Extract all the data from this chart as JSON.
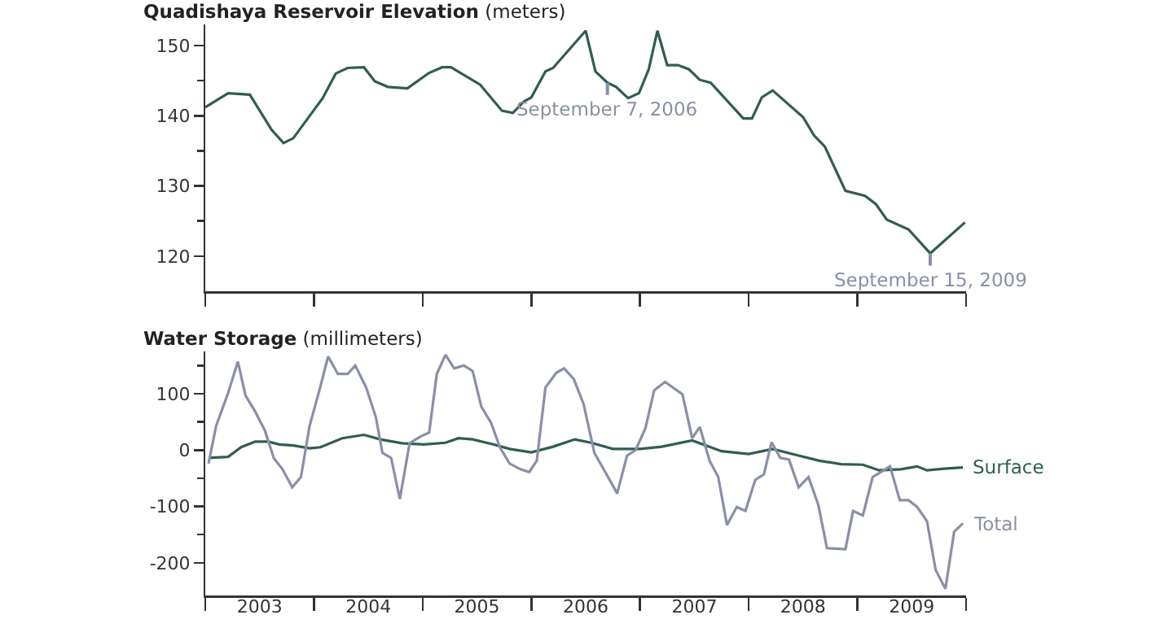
{
  "chart_data": [
    {
      "type": "line",
      "title": "Quadishaya Reservoir Elevation",
      "ylabel": "(meters)",
      "x": [
        2003.0,
        2003.21,
        2003.41,
        2003.61,
        2003.72,
        2003.81,
        2004.08,
        2004.2,
        2004.31,
        2004.46,
        2004.56,
        2004.68,
        2004.86,
        2005.06,
        2005.18,
        2005.26,
        2005.53,
        2005.73,
        2005.83,
        2005.93,
        2006.0,
        2006.13,
        2006.2,
        2006.5,
        2006.59,
        2006.7,
        2006.78,
        2006.89,
        2006.99,
        2007.08,
        2007.16,
        2007.25,
        2007.35,
        2007.45,
        2007.55,
        2007.65,
        2007.95,
        2008.03,
        2008.12,
        2008.22,
        2008.5,
        2008.6,
        2008.7,
        2008.89,
        2009.07,
        2009.17,
        2009.27,
        2009.47,
        2009.67,
        2009.99
      ],
      "series": [
        {
          "color": "#2f5e50",
          "values": [
            141.2,
            143.2,
            143.0,
            138.0,
            136.1,
            136.8,
            142.5,
            146.0,
            146.8,
            146.9,
            144.9,
            144.1,
            143.9,
            146.1,
            146.9,
            146.9,
            144.4,
            140.7,
            140.4,
            142.0,
            142.6,
            146.3,
            146.8,
            152.1,
            146.3,
            144.7,
            144.1,
            142.5,
            143.2,
            146.6,
            152.1,
            147.2,
            147.2,
            146.6,
            145.1,
            144.7,
            139.6,
            139.6,
            142.6,
            143.6,
            139.8,
            137.2,
            135.6,
            129.3,
            128.6,
            127.4,
            125.2,
            123.8,
            120.4,
            124.8
          ]
        }
      ],
      "annotations": [
        {
          "text": "September 7, 2006",
          "x": 2006.7,
          "y": 144.7
        },
        {
          "text": "September 15, 2009",
          "x": 2009.67,
          "y": 120.4
        }
      ],
      "xlim": [
        2003,
        2010
      ],
      "xticks": [
        {
          "value": 2003,
          "label": null
        },
        {
          "value": 2004,
          "label": null
        },
        {
          "value": 2005,
          "label": null
        },
        {
          "value": 2006,
          "label": null
        },
        {
          "value": 2007,
          "label": null
        },
        {
          "value": 2008,
          "label": null
        },
        {
          "value": 2009,
          "label": null
        },
        {
          "value": 2010,
          "label": null
        }
      ],
      "ylim": [
        115,
        153
      ],
      "yticks": [
        120,
        {
          "value": 125,
          "label": null
        },
        130,
        {
          "value": 135,
          "label": null
        },
        140,
        {
          "value": 145,
          "label": null
        },
        150
      ],
      "tick_labels": "y"
    },
    {
      "type": "line",
      "title": "Water Storage",
      "ylabel": "(millimeters)",
      "series": [
        {
          "name": "Surface",
          "color": "#2f5e50",
          "x": [
            2003.03,
            2003.21,
            2003.33,
            2003.46,
            2003.58,
            2003.68,
            2003.81,
            2003.96,
            2004.06,
            2004.26,
            2004.46,
            2004.61,
            2004.81,
            2005.01,
            2005.21,
            2005.33,
            2005.46,
            2005.65,
            2005.8,
            2006.0,
            2006.2,
            2006.4,
            2006.55,
            2006.75,
            2007.0,
            2007.2,
            2007.48,
            2007.75,
            2008.0,
            2008.22,
            2008.42,
            2008.65,
            2008.85,
            2009.05,
            2009.2,
            2009.4,
            2009.55,
            2009.64,
            2009.8,
            2009.97
          ],
          "values": [
            -14,
            -12,
            5,
            15,
            15,
            10,
            8,
            3,
            5,
            21,
            27,
            19,
            12,
            10,
            13,
            21,
            19,
            10,
            2,
            -4,
            6,
            19,
            13,
            2,
            2,
            6,
            17,
            -2,
            -7,
            2,
            -8,
            -19,
            -25,
            -26,
            -36,
            -34,
            -29,
            -36,
            -33,
            -31
          ]
        },
        {
          "name": "Total",
          "color": "#8a8fa8",
          "x": [
            2003.03,
            2003.1,
            2003.21,
            2003.3,
            2003.37,
            2003.46,
            2003.55,
            2003.63,
            2003.71,
            2003.8,
            2003.88,
            2003.96,
            2004.05,
            2004.13,
            2004.22,
            2004.31,
            2004.38,
            2004.48,
            2004.57,
            2004.63,
            2004.71,
            2004.79,
            2004.88,
            2004.98,
            2005.06,
            2005.13,
            2005.21,
            2005.29,
            2005.38,
            2005.46,
            2005.54,
            2005.63,
            2005.71,
            2005.8,
            2005.9,
            2005.98,
            2006.05,
            2006.13,
            2006.23,
            2006.3,
            2006.39,
            2006.48,
            2006.58,
            2006.68,
            2006.79,
            2006.88,
            2006.96,
            2007.05,
            2007.13,
            2007.23,
            2007.39,
            2007.48,
            2007.55,
            2007.64,
            2007.72,
            2007.8,
            2007.89,
            2007.97,
            2008.06,
            2008.14,
            2008.21,
            2008.29,
            2008.37,
            2008.46,
            2008.55,
            2008.64,
            2008.72,
            2008.89,
            2008.96,
            2009.05,
            2009.14,
            2009.3,
            2009.39,
            2009.47,
            2009.55,
            2009.64,
            2009.72,
            2009.81,
            2009.89,
            2009.97
          ],
          "values": [
            -24,
            43,
            101,
            157,
            97,
            68,
            34,
            -14,
            -34,
            -66,
            -48,
            43,
            106,
            166,
            135,
            135,
            150,
            111,
            58,
            -5,
            -14,
            -87,
            12,
            24,
            31,
            135,
            169,
            145,
            150,
            140,
            77,
            48,
            5,
            -24,
            -34,
            -39,
            -19,
            111,
            137,
            145,
            126,
            82,
            -5,
            -39,
            -77,
            -10,
            0,
            39,
            106,
            121,
            99,
            21,
            41,
            -19,
            -48,
            -133,
            -101,
            -108,
            -53,
            -43,
            14,
            -14,
            -17,
            -66,
            -48,
            -97,
            -174,
            -176,
            -108,
            -116,
            -48,
            -29,
            -89,
            -89,
            -101,
            -126,
            -213,
            -246,
            -145,
            -130
          ]
        }
      ],
      "xlim": [
        2003,
        2010
      ],
      "xticks": [
        {
          "value": 2003,
          "label": null
        },
        {
          "value": 2003.5,
          "label": "2003"
        },
        {
          "value": 2004,
          "label": null
        },
        {
          "value": 2004.5,
          "label": "2004"
        },
        {
          "value": 2005,
          "label": null
        },
        {
          "value": 2005.5,
          "label": "2005"
        },
        {
          "value": 2006,
          "label": null
        },
        {
          "value": 2006.5,
          "label": "2006"
        },
        {
          "value": 2007,
          "label": null
        },
        {
          "value": 2007.5,
          "label": "2007"
        },
        {
          "value": 2008,
          "label": null
        },
        {
          "value": 2008.5,
          "label": "2008"
        },
        {
          "value": 2009,
          "label": null
        },
        {
          "value": 2009.5,
          "label": "2009"
        },
        {
          "value": 2010,
          "label": null
        }
      ],
      "ylim": [
        -258,
        175
      ],
      "yticks": [
        {
          "value": 150,
          "label": null
        },
        100,
        {
          "value": 50,
          "label": null
        },
        0,
        {
          "value": -50,
          "label": null
        },
        -100,
        {
          "value": -150,
          "label": null
        },
        -200
      ]
    }
  ]
}
